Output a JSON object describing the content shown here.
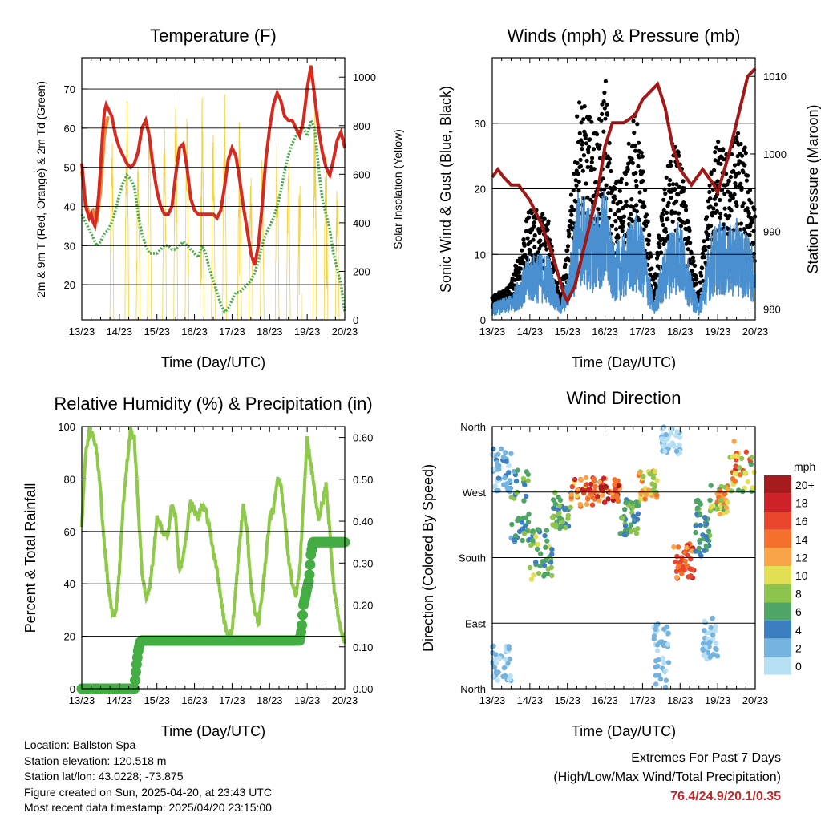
{
  "charts": {
    "temperature": {
      "title": "Temperature (F)",
      "xlabel": "Time (Day/UTC)",
      "ylabel_left": "2m & 9m T (Red, Orange) & 2m Td (Green)",
      "ylabel_right": "Solar Insolation (Yellow)"
    },
    "winds": {
      "title": "Winds (mph) & Pressure (mb)",
      "xlabel": "Time (Day/UTC)",
      "ylabel_left": "Sonic Wind & Gust (Blue, Black)",
      "ylabel_right": "Station Pressure (Maroon)"
    },
    "humidity": {
      "title": "Relative Humidity (%) & Precipitation (in)",
      "xlabel": "Time (Day/UTC)",
      "ylabel_left": "Percent & Total Rainfall"
    },
    "direction": {
      "title": "Wind Direction",
      "xlabel": "Time (Day/UTC)",
      "ylabel_left": "Direction (Colored By Speed)",
      "legend_title": "mph"
    }
  },
  "info": {
    "location": "Location: Ballston Spa",
    "elevation": "Station elevation: 120.518 m",
    "latlon": "Station lat/lon: 43.0228; -73.875",
    "created": "Figure created on Sun, 2025-04-20, at 23:43 UTC",
    "recent": "Most recent data timestamp: 2025/04/20 23:15:00"
  },
  "extremes": {
    "line1": "Extremes For Past 7 Days",
    "line2": "(High/Low/Max Wind/Total Precipitation)",
    "values": "76.4/24.9/20.1/0.35"
  },
  "colors": {
    "temp2m": "#d42a20",
    "temp9m": "#f08a30",
    "dewpoint": "#44ad44",
    "solar": "#f5d23c",
    "wind": "#4a90d0",
    "gust": "#000000",
    "pressure": "#a01818",
    "rh": "#8ec94a",
    "precip": "#44ad44"
  },
  "chart_data": [
    {
      "type": "line",
      "id": "temperature",
      "x_ticks": [
        "13/23",
        "14/23",
        "15/23",
        "16/23",
        "17/23",
        "18/23",
        "19/23",
        "20/23"
      ],
      "xlim": [
        0,
        7
      ],
      "y_left_ticks": [
        20,
        30,
        40,
        50,
        60,
        70
      ],
      "ylim_left": [
        11,
        78
      ],
      "y_right_ticks": [
        0,
        200,
        400,
        600,
        800,
        1000
      ],
      "ylim_right": [
        0,
        1080
      ],
      "series": [
        {
          "key": "t2m",
          "axis": "left",
          "x": [
            0,
            0.05,
            0.1,
            0.2,
            0.25,
            0.3,
            0.35,
            0.4,
            0.45,
            0.5,
            0.55,
            0.6,
            0.65,
            0.7,
            0.8,
            0.9,
            1.0,
            1.1,
            1.2,
            1.3,
            1.4,
            1.5,
            1.6,
            1.7,
            1.8,
            1.9,
            2.0,
            2.1,
            2.2,
            2.3,
            2.4,
            2.5,
            2.6,
            2.7,
            2.8,
            2.9,
            3.0,
            3.1,
            3.2,
            3.3,
            3.4,
            3.5,
            3.6,
            3.7,
            3.8,
            3.9,
            4.0,
            4.1,
            4.2,
            4.3,
            4.4,
            4.5,
            4.6,
            4.7,
            4.8,
            4.9,
            5.0,
            5.1,
            5.2,
            5.3,
            5.4,
            5.5,
            5.6,
            5.7,
            5.8,
            5.9,
            6.0,
            6.1,
            6.2,
            6.3,
            6.4,
            6.5,
            6.6,
            6.7,
            6.8,
            6.9,
            7.0
          ],
          "y": [
            51,
            46,
            40,
            37,
            38,
            36,
            35,
            38,
            43,
            50,
            58,
            64,
            66,
            65,
            63,
            58,
            55,
            53,
            51,
            50,
            51,
            54,
            60,
            62,
            58,
            50,
            44,
            40,
            38,
            38,
            40,
            48,
            55,
            56,
            50,
            42,
            39,
            38,
            38,
            38,
            38,
            38,
            37,
            39,
            45,
            52,
            55,
            53,
            47,
            40,
            34,
            28,
            25,
            30,
            40,
            52,
            60,
            66,
            69,
            67,
            63,
            62,
            62,
            60,
            58,
            62,
            70,
            76,
            68,
            60,
            54,
            50,
            48,
            52,
            57,
            59,
            55
          ]
        },
        {
          "key": "t9m",
          "axis": "left",
          "x": [
            0,
            0.1,
            0.2,
            0.3,
            0.4,
            0.5,
            0.6,
            0.7
          ],
          "y": [
            49,
            41,
            38,
            39,
            36,
            44,
            58,
            63
          ]
        },
        {
          "key": "td",
          "axis": "left",
          "x": [
            0,
            0.1,
            0.2,
            0.3,
            0.4,
            0.5,
            0.6,
            0.7,
            0.8,
            0.9,
            1.0,
            1.1,
            1.2,
            1.3,
            1.4,
            1.5,
            1.6,
            1.7,
            1.8,
            1.9,
            2.0,
            2.1,
            2.2,
            2.3,
            2.4,
            2.5,
            2.6,
            2.7,
            2.8,
            2.9,
            3.0,
            3.1,
            3.2,
            3.3,
            3.4,
            3.5,
            3.6,
            3.7,
            3.8,
            3.9,
            4.0,
            4.1,
            4.2,
            4.3,
            4.4,
            4.5,
            4.6,
            4.7,
            4.8,
            4.9,
            5.0,
            5.1,
            5.2,
            5.3,
            5.4,
            5.5,
            5.6,
            5.7,
            5.8,
            5.9,
            6.0,
            6.1,
            6.2,
            6.3,
            6.4,
            6.5,
            6.6,
            6.7,
            6.8,
            6.9,
            7.0
          ],
          "y": [
            38,
            36,
            34,
            32,
            30,
            31,
            33,
            34,
            36,
            39,
            43,
            46,
            48,
            47,
            45,
            38,
            33,
            30,
            28,
            28,
            28,
            29,
            30,
            30,
            29,
            29,
            30,
            31,
            30,
            29,
            28,
            27,
            30,
            28,
            24,
            21,
            18,
            15,
            13,
            14,
            16,
            18,
            18,
            19,
            20,
            21,
            23,
            26,
            30,
            33,
            35,
            37,
            40,
            44,
            49,
            53,
            56,
            58,
            60,
            60,
            58,
            62,
            60,
            50,
            42,
            38,
            34,
            28,
            24,
            20,
            13
          ]
        },
        {
          "key": "solar",
          "axis": "right",
          "peaks": [
            0.8,
            1.2,
            1.5,
            1.8,
            2.2,
            2.5,
            2.8,
            3.2,
            3.5,
            3.8,
            4.2,
            4.5,
            4.8,
            5.2,
            5.5,
            5.8,
            6.2,
            6.5,
            6.8
          ],
          "values": [
            800,
            950,
            700,
            900,
            850,
            1000,
            850,
            1050,
            900,
            950,
            850,
            600,
            700,
            750,
            700,
            650,
            900,
            800,
            600
          ]
        }
      ]
    },
    {
      "type": "scatter",
      "id": "winds",
      "x_ticks": [
        "13/23",
        "14/23",
        "15/23",
        "16/23",
        "17/23",
        "18/23",
        "19/23",
        "20/23"
      ],
      "xlim": [
        0,
        7
      ],
      "y_left_ticks": [
        0,
        10,
        20,
        30
      ],
      "ylim_left": [
        0,
        40
      ],
      "y_right_ticks": [
        980,
        990,
        1000,
        1010
      ],
      "ylim_right": [
        978.6,
        1012.4
      ],
      "gust_profile": {
        "x": [
          0,
          0.5,
          1.0,
          1.5,
          1.8,
          2.0,
          2.3,
          2.5,
          2.8,
          3.0,
          3.2,
          3.5,
          3.8,
          4.0,
          4.3,
          4.5,
          4.8,
          5.0,
          5.3,
          5.5,
          5.8,
          6.0,
          6.3,
          6.5,
          6.8,
          7.0
        ],
        "y": [
          3,
          5,
          15,
          14,
          3,
          10,
          30,
          28,
          25,
          33,
          18,
          20,
          28,
          22,
          4,
          15,
          24,
          22,
          10,
          4,
          20,
          24,
          22,
          26,
          22,
          14
        ]
      },
      "wind_profile": {
        "x": [
          0,
          0.5,
          1.0,
          1.5,
          1.8,
          2.0,
          2.3,
          2.5,
          2.8,
          3.0,
          3.2,
          3.5,
          3.8,
          4.0,
          4.3,
          4.5,
          4.8,
          5.0,
          5.3,
          5.5,
          5.8,
          6.0,
          6.3,
          6.5,
          6.8,
          7.0
        ],
        "y": [
          2,
          3,
          8,
          8,
          2,
          5,
          16,
          14,
          13,
          16,
          9,
          10,
          13,
          11,
          2,
          7,
          12,
          12,
          5,
          2,
          10,
          12,
          11,
          12,
          10,
          8
        ]
      },
      "pressure": {
        "x": [
          0,
          0.15,
          0.3,
          0.5,
          0.7,
          1.0,
          1.3,
          1.6,
          1.9,
          2.0,
          2.2,
          2.5,
          2.8,
          3.0,
          3.2,
          3.5,
          3.8,
          4.0,
          4.2,
          4.4,
          4.6,
          4.8,
          5.0,
          5.3,
          5.6,
          5.9,
          6.0,
          6.3,
          6.6,
          6.8,
          7.0
        ],
        "y": [
          997,
          998,
          997,
          996,
          996,
          994,
          991,
          987,
          982,
          981,
          983,
          989,
          995,
          1001,
          1004,
          1004,
          1005,
          1007,
          1008,
          1009,
          1006,
          1001,
          998,
          996,
          998,
          996,
          995,
          1000,
          1006,
          1010,
          1011
        ]
      }
    },
    {
      "type": "line",
      "id": "humidity",
      "x_ticks": [
        "13/23",
        "14/23",
        "15/23",
        "16/23",
        "17/23",
        "18/23",
        "19/23",
        "20/23"
      ],
      "xlim": [
        0,
        7
      ],
      "y_left_ticks": [
        0,
        20,
        40,
        60,
        80,
        100
      ],
      "ylim_left": [
        0,
        100
      ],
      "y_right_ticks": [
        "0.00",
        "0.10",
        "0.20",
        "0.30",
        "0.40",
        "0.50",
        "0.60"
      ],
      "ylim_right": [
        0,
        0.626
      ],
      "rh": {
        "x": [
          0,
          0.1,
          0.2,
          0.3,
          0.4,
          0.5,
          0.6,
          0.7,
          0.8,
          0.9,
          1.0,
          1.1,
          1.2,
          1.3,
          1.4,
          1.5,
          1.6,
          1.7,
          1.8,
          1.9,
          2.0,
          2.1,
          2.2,
          2.3,
          2.4,
          2.5,
          2.6,
          2.7,
          2.8,
          2.9,
          3.0,
          3.1,
          3.2,
          3.3,
          3.4,
          3.5,
          3.6,
          3.7,
          3.8,
          3.9,
          4.0,
          4.1,
          4.2,
          4.3,
          4.4,
          4.5,
          4.6,
          4.7,
          4.8,
          4.9,
          5.0,
          5.1,
          5.2,
          5.3,
          5.4,
          5.5,
          5.6,
          5.7,
          5.8,
          5.9,
          6.0,
          6.1,
          6.2,
          6.3,
          6.4,
          6.5,
          6.6,
          6.7,
          6.8,
          6.9,
          7.0
        ],
        "y": [
          62,
          90,
          99,
          97,
          90,
          75,
          55,
          40,
          30,
          28,
          45,
          70,
          85,
          99,
          95,
          70,
          45,
          35,
          38,
          50,
          65,
          62,
          58,
          60,
          70,
          65,
          45,
          50,
          60,
          72,
          68,
          65,
          70,
          68,
          62,
          52,
          45,
          35,
          25,
          20,
          22,
          38,
          55,
          70,
          60,
          40,
          30,
          25,
          35,
          50,
          65,
          68,
          80,
          78,
          65,
          50,
          40,
          35,
          45,
          70,
          95,
          85,
          75,
          65,
          70,
          78,
          60,
          40,
          30,
          22,
          18
        ]
      },
      "precip": {
        "x": [
          0,
          1.4,
          1.42,
          1.45,
          1.5,
          1.55,
          1.6,
          5.8,
          5.85,
          5.9,
          6.0,
          6.05,
          6.1,
          6.15,
          7.0
        ],
        "y": [
          0,
          0,
          0.02,
          0.05,
          0.09,
          0.11,
          0.115,
          0.115,
          0.14,
          0.2,
          0.24,
          0.26,
          0.32,
          0.35,
          0.35
        ]
      }
    },
    {
      "type": "scatter",
      "id": "direction",
      "x_ticks": [
        "13/23",
        "14/23",
        "15/23",
        "16/23",
        "17/23",
        "18/23",
        "19/23",
        "20/23"
      ],
      "xlim": [
        0,
        7
      ],
      "y_ticks": [
        "North",
        "East",
        "South",
        "West",
        "North"
      ],
      "ylim": [
        0,
        360
      ],
      "legend": {
        "labels": [
          "20+",
          "18",
          "16",
          "14",
          "12",
          "10",
          "8",
          "6",
          "4",
          "2",
          "0"
        ],
        "colors": [
          "#a51b1e",
          "#cc2127",
          "#e8452c",
          "#f4712c",
          "#f9a547",
          "#e2df55",
          "#8cc44d",
          "#4ea565",
          "#3c7fc0",
          "#74b3e0",
          "#b8e0f5"
        ]
      },
      "clusters": [
        {
          "x": [
            0,
            0.5
          ],
          "dir": [
            270,
            330
          ],
          "speed": [
            0,
            4
          ]
        },
        {
          "x": [
            0,
            0.5
          ],
          "dir": [
            10,
            60
          ],
          "speed": [
            0,
            3
          ]
        },
        {
          "x": [
            0.5,
            1.0
          ],
          "dir": [
            200,
            300
          ],
          "speed": [
            2,
            8
          ]
        },
        {
          "x": [
            1.0,
            1.6
          ],
          "dir": [
            150,
            220
          ],
          "speed": [
            3,
            10
          ]
        },
        {
          "x": [
            1.6,
            2.1
          ],
          "dir": [
            220,
            270
          ],
          "speed": [
            4,
            9
          ]
        },
        {
          "x": [
            2.1,
            2.8
          ],
          "dir": [
            250,
            290
          ],
          "speed": [
            10,
            20
          ]
        },
        {
          "x": [
            2.8,
            3.4
          ],
          "dir": [
            255,
            290
          ],
          "speed": [
            10,
            20
          ]
        },
        {
          "x": [
            3.4,
            3.9
          ],
          "dir": [
            210,
            260
          ],
          "speed": [
            4,
            8
          ]
        },
        {
          "x": [
            3.9,
            4.4
          ],
          "dir": [
            260,
            300
          ],
          "speed": [
            8,
            14
          ]
        },
        {
          "x": [
            4.3,
            4.7
          ],
          "dir": [
            0,
            90
          ],
          "speed": [
            0,
            3
          ]
        },
        {
          "x": [
            4.5,
            5.0
          ],
          "dir": [
            320,
            360
          ],
          "speed": [
            0,
            2
          ]
        },
        {
          "x": [
            4.8,
            5.4
          ],
          "dir": [
            150,
            200
          ],
          "speed": [
            12,
            18
          ]
        },
        {
          "x": [
            5.4,
            5.8
          ],
          "dir": [
            180,
            260
          ],
          "speed": [
            3,
            8
          ]
        },
        {
          "x": [
            5.6,
            6.0
          ],
          "dir": [
            40,
            100
          ],
          "speed": [
            0,
            3
          ]
        },
        {
          "x": [
            5.8,
            6.3
          ],
          "dir": [
            240,
            280
          ],
          "speed": [
            6,
            14
          ]
        },
        {
          "x": [
            6.3,
            7.0
          ],
          "dir": [
            270,
            340
          ],
          "speed": [
            6,
            18
          ]
        }
      ]
    }
  ]
}
